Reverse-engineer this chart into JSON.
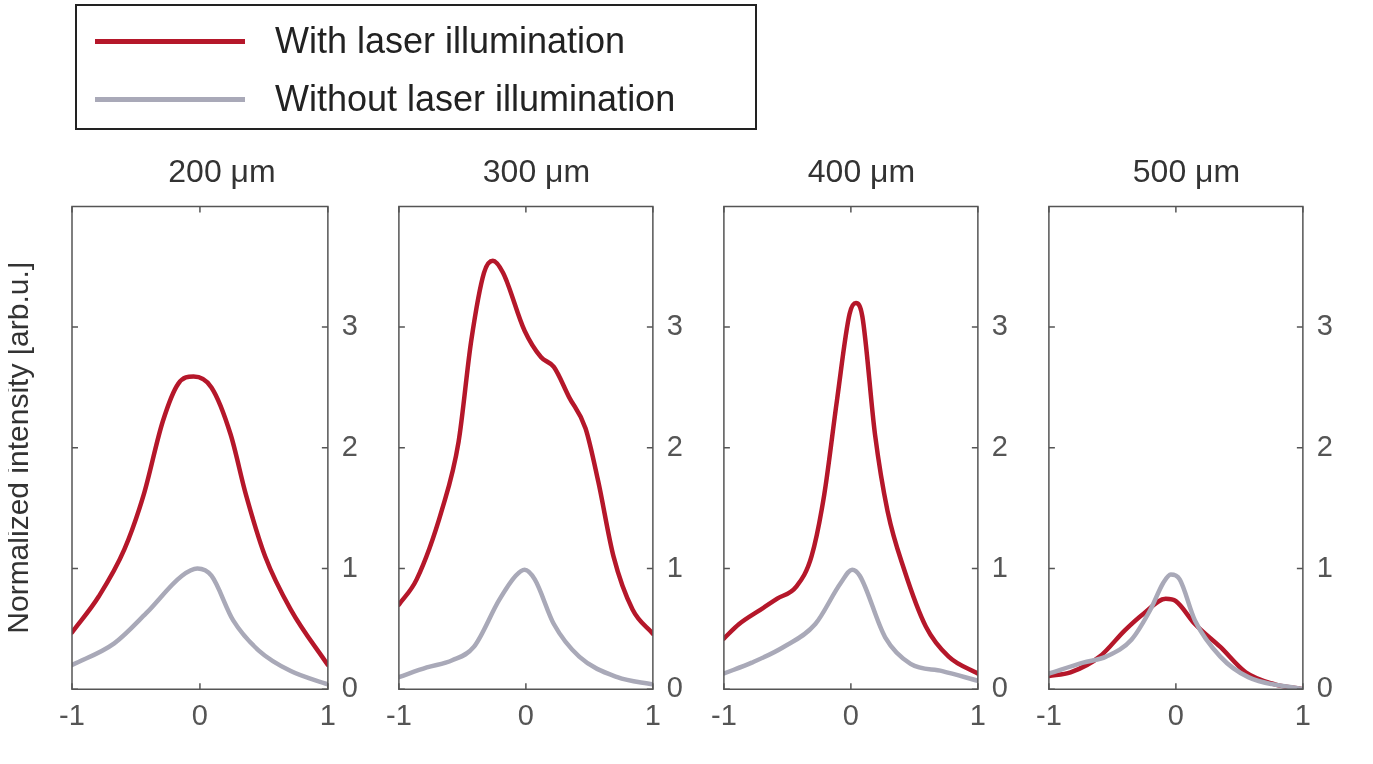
{
  "chart_data": [
    {
      "type": "line",
      "title": "200 μm",
      "ylabel": "Normalized intensity [arb.u.]",
      "legend": "top right",
      "xlim": [
        -1,
        1
      ],
      "xticks": [
        -1,
        0,
        1
      ],
      "ylim": [
        0,
        4
      ],
      "yticks": [
        0,
        1,
        2,
        3
      ],
      "grid": false,
      "line_style": "solid",
      "series": [
        {
          "name": "With laser illumination",
          "color": "#b5172a",
          "x": [
            -1,
            -0.79,
            -0.59,
            -0.44,
            -0.29,
            -0.17,
            -0.05,
            0.09,
            0.24,
            0.36,
            0.51,
            0.71,
            1
          ],
          "values": [
            0.47,
            0.77,
            1.16,
            1.61,
            2.22,
            2.53,
            2.59,
            2.5,
            2.11,
            1.61,
            1.1,
            0.66,
            0.2
          ]
        },
        {
          "name": "Without laser illumination",
          "color": "#a9a9b8",
          "x": [
            -1,
            -0.67,
            -0.42,
            -0.14,
            -0.02,
            0.09,
            0.26,
            0.46,
            0.71,
            1
          ],
          "values": [
            0.2,
            0.38,
            0.63,
            0.94,
            1.0,
            0.94,
            0.57,
            0.32,
            0.15,
            0.04
          ]
        }
      ]
    },
    {
      "type": "line",
      "title": "300 μm",
      "xlim": [
        -1,
        1
      ],
      "xticks": [
        -1,
        0,
        1
      ],
      "ylim": [
        0,
        4
      ],
      "yticks": [
        0,
        1,
        2,
        3
      ],
      "grid": false,
      "line_style": "solid",
      "series": [
        {
          "color": "#b5172a",
          "x": [
            -1,
            -0.86,
            -0.66,
            -0.53,
            -0.43,
            -0.33,
            -0.26,
            -0.18,
            -0.01,
            0.12,
            0.22,
            0.34,
            0.47,
            0.57,
            0.69,
            0.84,
            1
          ],
          "values": [
            0.7,
            0.91,
            1.49,
            2.05,
            2.89,
            3.45,
            3.55,
            3.45,
            2.97,
            2.75,
            2.67,
            2.42,
            2.16,
            1.72,
            1.1,
            0.66,
            0.46
          ]
        },
        {
          "color": "#a9a9b8",
          "x": [
            -1,
            -0.78,
            -0.58,
            -0.41,
            -0.21,
            -0.08,
            -0.01,
            0.07,
            0.22,
            0.42,
            0.72,
            1
          ],
          "values": [
            0.1,
            0.18,
            0.24,
            0.35,
            0.74,
            0.94,
            0.99,
            0.91,
            0.54,
            0.27,
            0.1,
            0.04
          ]
        }
      ]
    },
    {
      "type": "line",
      "title": "400 μm",
      "xlim": [
        -1,
        1
      ],
      "xticks": [
        -1,
        0,
        1
      ],
      "ylim": [
        0,
        4
      ],
      "yticks": [
        0,
        1,
        2,
        3
      ],
      "grid": false,
      "line_style": "solid",
      "series": [
        {
          "color": "#b5172a",
          "x": [
            -1,
            -0.88,
            -0.71,
            -0.58,
            -0.43,
            -0.31,
            -0.21,
            -0.11,
            -0.01,
            0.04,
            0.09,
            0.19,
            0.29,
            0.42,
            0.59,
            0.77,
            1
          ],
          "values": [
            0.42,
            0.54,
            0.66,
            0.75,
            0.85,
            1.1,
            1.61,
            2.39,
            3.11,
            3.2,
            3.09,
            2.11,
            1.47,
            0.99,
            0.52,
            0.27,
            0.13
          ]
        },
        {
          "color": "#a9a9b8",
          "x": [
            -1,
            -0.78,
            -0.53,
            -0.28,
            -0.08,
            0.01,
            0.07,
            0.27,
            0.47,
            0.72,
            1
          ],
          "values": [
            0.13,
            0.22,
            0.35,
            0.54,
            0.88,
            0.99,
            0.94,
            0.43,
            0.21,
            0.15,
            0.07
          ]
        }
      ]
    },
    {
      "type": "line",
      "title": "500 μm",
      "xlim": [
        -1,
        1
      ],
      "xticks": [
        -1,
        0,
        1
      ],
      "ylim": [
        0,
        4
      ],
      "yticks": [
        0,
        1,
        2,
        3
      ],
      "grid": false,
      "line_style": "solid",
      "series": [
        {
          "color": "#a9a9b8",
          "x": [
            -1,
            -0.73,
            -0.55,
            -0.35,
            -0.2,
            -0.1,
            -0.04,
            0.03,
            0.15,
            0.35,
            0.57,
            1
          ],
          "values": [
            0.13,
            0.22,
            0.27,
            0.41,
            0.66,
            0.88,
            0.95,
            0.91,
            0.57,
            0.27,
            0.1,
            0
          ]
        },
        {
          "color": "#b5172a",
          "x": [
            -1,
            -0.83,
            -0.6,
            -0.4,
            -0.25,
            -0.08,
            0,
            0.15,
            0.35,
            0.55,
            0.78,
            1
          ],
          "values": [
            0.11,
            0.14,
            0.27,
            0.49,
            0.63,
            0.75,
            0.73,
            0.54,
            0.35,
            0.14,
            0.04,
            0
          ]
        }
      ]
    }
  ]
}
